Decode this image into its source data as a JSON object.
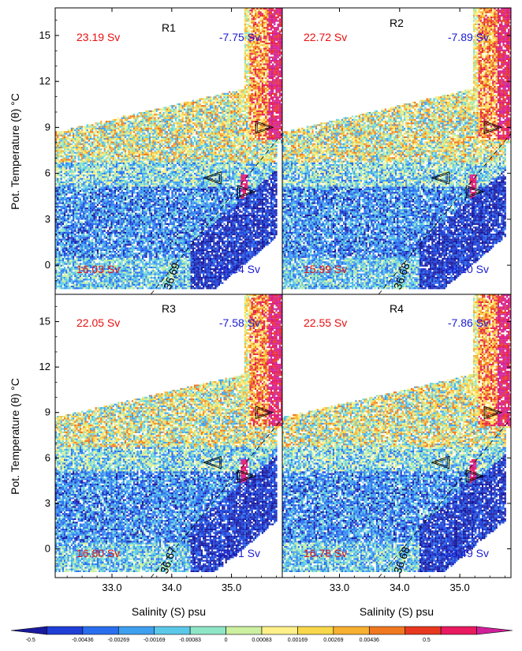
{
  "chart_data": {
    "type": "heatmap",
    "x_axis": {
      "label": "Salinity (S) psu",
      "range": [
        32.05,
        35.85
      ],
      "ticks": [
        33.0,
        34.0,
        35.0
      ],
      "tick_labels": [
        "33.0",
        "34.0",
        "35.0"
      ]
    },
    "y_axis": {
      "label": "Pot. Temperature (θ) °C",
      "range": [
        -1.9,
        16.8
      ],
      "ticks": [
        0,
        3,
        6,
        9,
        12,
        15
      ],
      "tick_labels": [
        "0",
        "3",
        "6",
        "9",
        "12",
        "15"
      ]
    },
    "colorbar": {
      "tick_labels": [
        "-0.5",
        "-0.00436",
        "-0.00269",
        "-0.00169",
        "-0.00083",
        "0",
        "0.00083",
        "0.00169",
        "0.00269",
        "0.00436",
        "0.5"
      ],
      "colors": [
        "#1a1a9e",
        "#1f3fd6",
        "#2a6ef0",
        "#3fa0f0",
        "#5cc8e8",
        "#8ee6c6",
        "#ccf0a0",
        "#fff08a",
        "#f8d84a",
        "#f8b030",
        "#f07820",
        "#e83820",
        "#e81a60",
        "#d0209a"
      ]
    },
    "panels": [
      {
        "title": "R1",
        "top_left": "23.19 Sv",
        "top_right": "-7.75 Sv",
        "bottom_left": "16.03 Sv",
        "bottom_right": "-28.24 Sv",
        "isopycnal": "36.69"
      },
      {
        "title": "R2",
        "top_left": "22.72 Sv",
        "top_right": "-7.89 Sv",
        "bottom_left": "15.99 Sv",
        "bottom_right": "-28.10 Sv",
        "isopycnal": "36.68"
      },
      {
        "title": "R3",
        "top_left": "22.05 Sv",
        "top_right": "-7.58 Sv",
        "bottom_left": "16.80 Sv",
        "bottom_right": "-28.41 Sv",
        "isopycnal": "36.67"
      },
      {
        "title": "R4",
        "top_left": "22.55 Sv",
        "top_right": "-7.86 Sv",
        "bottom_left": "16.78 Sv",
        "bottom_right": "-28.49 Sv",
        "isopycnal": "36.68"
      }
    ],
    "triangle_markers": [
      {
        "S": 35.55,
        "T": 9.0
      },
      {
        "S": 34.68,
        "T": 5.7
      },
      {
        "S": 35.25,
        "T": 4.8
      }
    ]
  }
}
